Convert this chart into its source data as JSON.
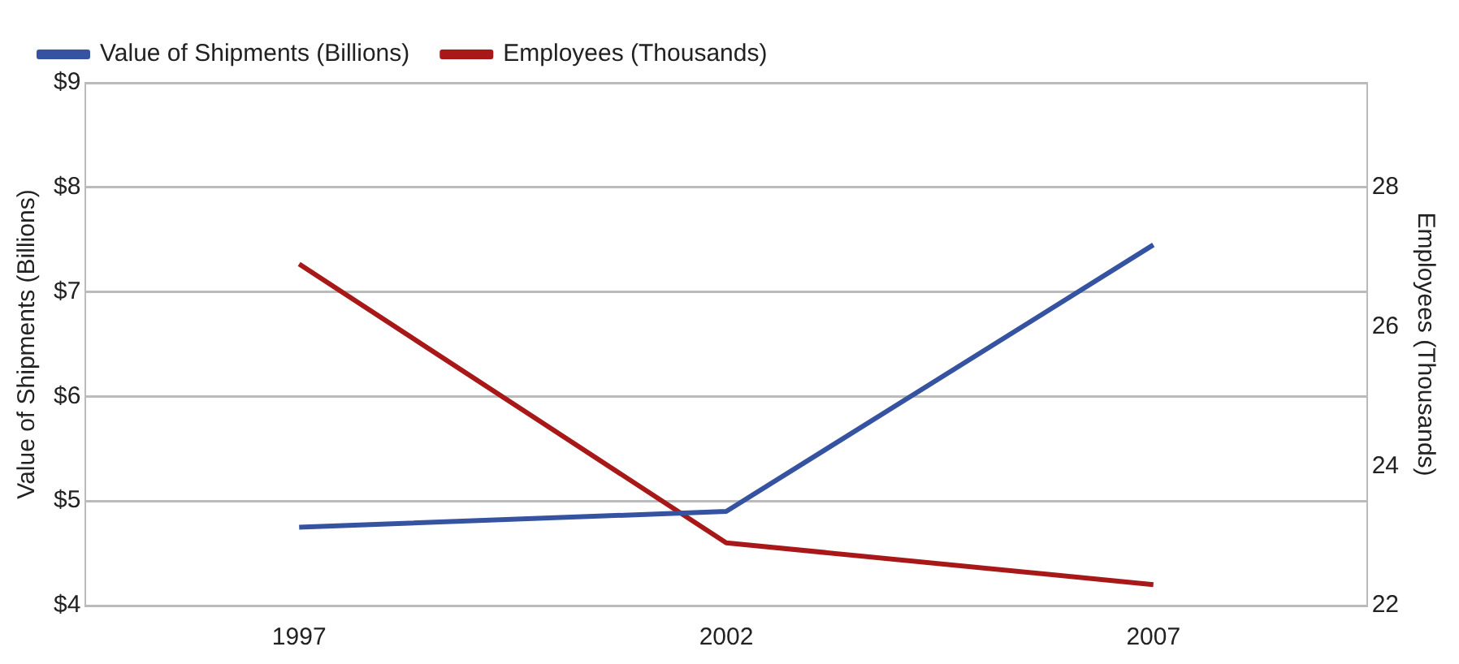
{
  "chart_data": {
    "type": "line",
    "categories": [
      "1997",
      "2002",
      "2007"
    ],
    "series": [
      {
        "name": "Value of Shipments (Billions)",
        "color": "#3553a0",
        "values": [
          4.75,
          4.9,
          7.45
        ]
      },
      {
        "name": "Employees (Thousands)",
        "color": "#a81818",
        "values": [
          26.9,
          22.9,
          22.3
        ],
        "axis": "y2"
      }
    ],
    "ylabel": "Value of Shipments (Billions)",
    "y2label": "Employees (Thousands)",
    "ylim": [
      4,
      9
    ],
    "yticks": [
      {
        "value": 4,
        "label": "$4"
      },
      {
        "value": 5,
        "label": "$5"
      },
      {
        "value": 6,
        "label": "$6"
      },
      {
        "value": 7,
        "label": "$7"
      },
      {
        "value": 8,
        "label": "$8"
      },
      {
        "value": 9,
        "label": "$9"
      }
    ],
    "y2lim": [
      22,
      29.5
    ],
    "y2ticks": [
      22,
      24,
      26,
      28
    ],
    "grid": "y",
    "legend": "top left",
    "marker": "none",
    "line_style": "solid"
  }
}
